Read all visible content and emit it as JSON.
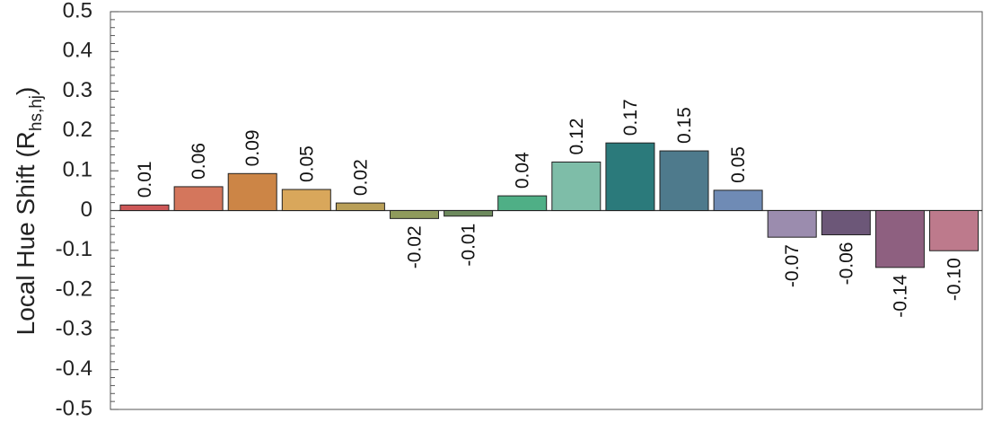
{
  "chart_data": {
    "type": "bar",
    "ylabel": {
      "main": "Local Hue  Shift (R",
      "subscript": "hs,hj",
      "close": ")"
    },
    "ylim": [
      -0.5,
      0.5
    ],
    "yticks": [
      0.5,
      0.4,
      0.3,
      0.2,
      0.1,
      0,
      -0.1,
      -0.2,
      -0.3,
      -0.4,
      -0.5
    ],
    "ytick_labels": [
      "0.5",
      "0.4",
      "0.3",
      "0.2",
      "0.1",
      "0",
      "-0.1",
      "-0.2",
      "-0.3",
      "-0.4",
      "-0.5"
    ],
    "grid": false,
    "legend": "none",
    "values": [
      0.014,
      0.06,
      0.093,
      0.053,
      0.019,
      -0.02,
      -0.014,
      0.037,
      0.122,
      0.17,
      0.15,
      0.051,
      -0.067,
      -0.061,
      -0.143,
      -0.101
    ],
    "labels": [
      "0.01",
      "0.06",
      "0.09",
      "0.05",
      "0.02",
      "-0.02",
      "-0.01",
      "0.04",
      "0.12",
      "0.17",
      "0.15",
      "0.05",
      "-0.07",
      "-0.06",
      "-0.14",
      "-0.10"
    ],
    "colors": [
      "#cd5757",
      "#d4765c",
      "#cc8546",
      "#d9a75b",
      "#b99f58",
      "#8f9a5c",
      "#6d8a5d",
      "#4faf86",
      "#7ebda8",
      "#2b7a7b",
      "#4e7a8c",
      "#6f8bb5",
      "#9b8cae",
      "#6c5778",
      "#8e6080",
      "#bd7a8c"
    ]
  }
}
